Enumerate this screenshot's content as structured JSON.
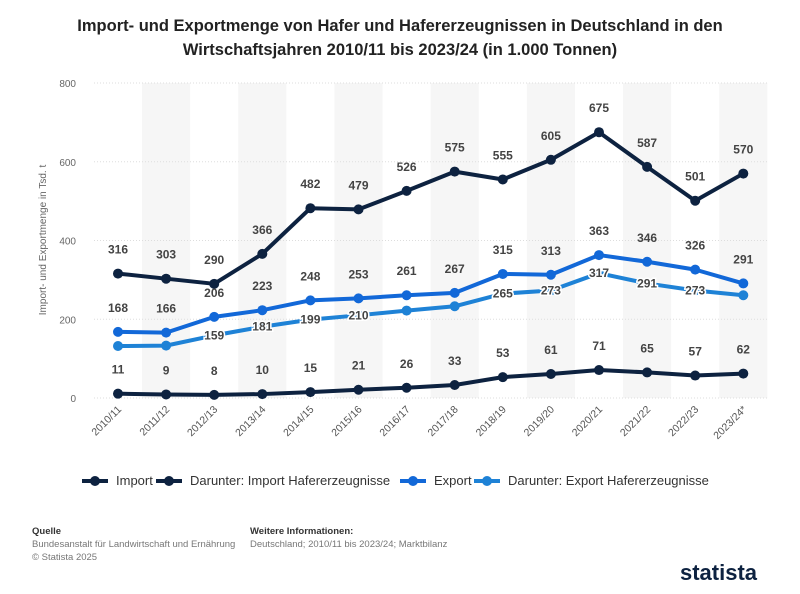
{
  "chart_data": {
    "type": "line",
    "title": "Import- und Exportmenge von Hafer und Hafererzeugnissen in Deutschland in den Wirtschaftsjahren 2010/11 bis 2023/24 (in 1.000 Tonnen)",
    "ylabel": "Import- und Exportmenge in Tsd. t",
    "xlabel": "",
    "ylim": [
      0,
      800
    ],
    "yticks": [
      0,
      200,
      400,
      600,
      800
    ],
    "grid": true,
    "legend_position": "bottom",
    "categories": [
      "2010/11",
      "2011/12",
      "2012/13",
      "2013/14",
      "2014/15",
      "2015/16",
      "2016/17",
      "2017/18",
      "2018/19",
      "2019/20",
      "2020/21",
      "2021/22",
      "2022/23",
      "2023/24*"
    ],
    "series": [
      {
        "name": "Import",
        "color": "#0d2240",
        "values": [
          316,
          303,
          290,
          366,
          482,
          479,
          526,
          575,
          555,
          605,
          675,
          587,
          501,
          570
        ],
        "labels": true
      },
      {
        "name": "Darunter: Import Hafererzeugnisse",
        "color": "#0d2240",
        "values": [
          11,
          9,
          8,
          10,
          15,
          21,
          26,
          33,
          53,
          61,
          71,
          65,
          57,
          62
        ],
        "labels": true
      },
      {
        "name": "Export",
        "color": "#1268d8",
        "values": [
          168,
          166,
          206,
          223,
          248,
          253,
          261,
          267,
          315,
          313,
          363,
          346,
          326,
          291
        ],
        "labels": true
      },
      {
        "name": "Darunter: Export Hafererzeugnisse",
        "color": "#1e82d6",
        "values": [
          132,
          133,
          159,
          181,
          199,
          210,
          222,
          233,
          265,
          273,
          317,
          291,
          273,
          261
        ],
        "labeled": [
          false,
          false,
          true,
          true,
          true,
          true,
          false,
          false,
          true,
          true,
          true,
          true,
          true,
          false
        ]
      }
    ]
  },
  "footer": {
    "source_label": "Quelle",
    "source": "Bundesanstalt für Landwirtschaft und Ernährung",
    "copyright": "© Statista 2025",
    "info_label": "Weitere Informationen:",
    "info": "Deutschland; 2010/11 bis 2023/24; Marktbilanz"
  },
  "logo": "statista"
}
